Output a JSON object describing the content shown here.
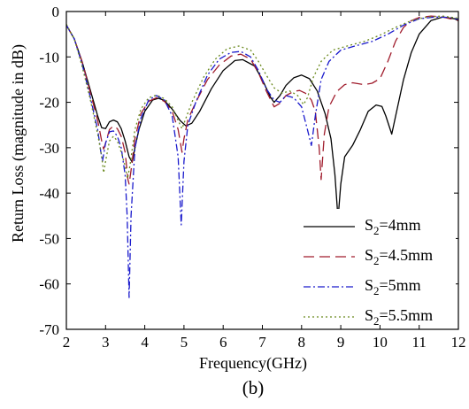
{
  "caption": "(b)",
  "chart_data": {
    "type": "line",
    "title": "",
    "xlabel": "Frequency(GHz)",
    "ylabel": "Return Loss (magnitude in dB)",
    "xlim": [
      2,
      12
    ],
    "ylim": [
      -70,
      0
    ],
    "xticks": [
      "2",
      "3",
      "4",
      "5",
      "6",
      "7",
      "8",
      "9",
      "10",
      "11",
      "12"
    ],
    "yticks": [
      "0",
      "-10",
      "-20",
      "-30",
      "-40",
      "-50",
      "-60",
      "-70"
    ],
    "grid": false,
    "legend_position": "bottom-right",
    "series": [
      {
        "name": "S2=4mm",
        "name_main": "S",
        "name_sub": "2",
        "name_suffix": "=4mm",
        "color": "#000000",
        "dash": "solid",
        "points": [
          [
            2.0,
            -3.0
          ],
          [
            2.2,
            -6.0
          ],
          [
            2.4,
            -11.0
          ],
          [
            2.6,
            -17.0
          ],
          [
            2.8,
            -23.0
          ],
          [
            2.9,
            -25.6
          ],
          [
            3.0,
            -25.8
          ],
          [
            3.1,
            -24.3
          ],
          [
            3.2,
            -23.9
          ],
          [
            3.3,
            -24.3
          ],
          [
            3.4,
            -25.8
          ],
          [
            3.5,
            -28.5
          ],
          [
            3.6,
            -32.0
          ],
          [
            3.68,
            -33.2
          ],
          [
            3.75,
            -30.0
          ],
          [
            3.85,
            -26.0
          ],
          [
            4.0,
            -22.0
          ],
          [
            4.2,
            -19.5
          ],
          [
            4.35,
            -19.1
          ],
          [
            4.5,
            -19.6
          ],
          [
            4.7,
            -21.5
          ],
          [
            4.9,
            -24.0
          ],
          [
            5.05,
            -25.2
          ],
          [
            5.2,
            -24.6
          ],
          [
            5.4,
            -22.0
          ],
          [
            5.7,
            -17.0
          ],
          [
            6.0,
            -13.0
          ],
          [
            6.3,
            -10.8
          ],
          [
            6.5,
            -10.6
          ],
          [
            6.8,
            -12.0
          ],
          [
            7.0,
            -15.0
          ],
          [
            7.2,
            -18.8
          ],
          [
            7.3,
            -20.0
          ],
          [
            7.45,
            -18.5
          ],
          [
            7.6,
            -16.3
          ],
          [
            7.8,
            -14.6
          ],
          [
            8.0,
            -14.0
          ],
          [
            8.2,
            -14.8
          ],
          [
            8.4,
            -17.5
          ],
          [
            8.6,
            -22.5
          ],
          [
            8.75,
            -28.0
          ],
          [
            8.85,
            -36.0
          ],
          [
            8.93,
            -45.6
          ],
          [
            9.0,
            -38.0
          ],
          [
            9.1,
            -32.0
          ],
          [
            9.3,
            -29.5
          ],
          [
            9.5,
            -26.0
          ],
          [
            9.7,
            -22.0
          ],
          [
            9.9,
            -20.6
          ],
          [
            10.05,
            -20.9
          ],
          [
            10.15,
            -23.0
          ],
          [
            10.3,
            -27.0
          ],
          [
            10.4,
            -23.0
          ],
          [
            10.6,
            -15.0
          ],
          [
            10.8,
            -9.0
          ],
          [
            11.0,
            -5.0
          ],
          [
            11.3,
            -2.0
          ],
          [
            11.6,
            -1.2
          ],
          [
            11.9,
            -1.6
          ],
          [
            12.0,
            -2.0
          ]
        ]
      },
      {
        "name": "S2=4.5mm",
        "name_main": "S",
        "name_sub": "2",
        "name_suffix": "=4.5mm",
        "color": "#a01c2c",
        "dash": "long-dash",
        "points": [
          [
            2.0,
            -3.0
          ],
          [
            2.2,
            -6.0
          ],
          [
            2.4,
            -11.0
          ],
          [
            2.6,
            -17.5
          ],
          [
            2.8,
            -24.0
          ],
          [
            2.9,
            -28.5
          ],
          [
            2.95,
            -30.3
          ],
          [
            3.0,
            -29.0
          ],
          [
            3.1,
            -26.0
          ],
          [
            3.2,
            -25.2
          ],
          [
            3.3,
            -25.8
          ],
          [
            3.4,
            -27.5
          ],
          [
            3.5,
            -31.0
          ],
          [
            3.57,
            -37.0
          ],
          [
            3.6,
            -38.0
          ],
          [
            3.65,
            -35.0
          ],
          [
            3.75,
            -28.0
          ],
          [
            3.9,
            -22.5
          ],
          [
            4.1,
            -19.8
          ],
          [
            4.3,
            -19.0
          ],
          [
            4.5,
            -19.8
          ],
          [
            4.7,
            -22.0
          ],
          [
            4.85,
            -26.0
          ],
          [
            4.95,
            -31.0
          ],
          [
            5.0,
            -28.0
          ],
          [
            5.1,
            -23.8
          ],
          [
            5.3,
            -20.0
          ],
          [
            5.6,
            -15.0
          ],
          [
            5.9,
            -11.8
          ],
          [
            6.2,
            -9.8
          ],
          [
            6.45,
            -9.4
          ],
          [
            6.7,
            -10.5
          ],
          [
            6.9,
            -13.5
          ],
          [
            7.1,
            -17.5
          ],
          [
            7.3,
            -21.0
          ],
          [
            7.45,
            -20.2
          ],
          [
            7.6,
            -18.5
          ],
          [
            7.8,
            -17.6
          ],
          [
            7.95,
            -17.4
          ],
          [
            8.1,
            -18.0
          ],
          [
            8.25,
            -19.5
          ],
          [
            8.35,
            -22.0
          ],
          [
            8.45,
            -30.0
          ],
          [
            8.5,
            -37.0
          ],
          [
            8.58,
            -27.0
          ],
          [
            8.7,
            -21.0
          ],
          [
            8.9,
            -17.6
          ],
          [
            9.1,
            -16.1
          ],
          [
            9.3,
            -15.7
          ],
          [
            9.6,
            -16.1
          ],
          [
            9.8,
            -15.8
          ],
          [
            10.0,
            -14.8
          ],
          [
            10.2,
            -11.0
          ],
          [
            10.4,
            -6.5
          ],
          [
            10.6,
            -3.5
          ],
          [
            10.8,
            -2.0
          ],
          [
            11.0,
            -1.3
          ],
          [
            11.3,
            -1.0
          ],
          [
            11.6,
            -1.2
          ],
          [
            12.0,
            -2.0
          ]
        ]
      },
      {
        "name": "S2=5mm",
        "name_main": "S",
        "name_sub": "2",
        "name_suffix": "=5mm",
        "color": "#1a1acc",
        "dash": "dash-dot",
        "points": [
          [
            2.0,
            -3.0
          ],
          [
            2.2,
            -6.0
          ],
          [
            2.4,
            -11.5
          ],
          [
            2.6,
            -18.5
          ],
          [
            2.8,
            -26.0
          ],
          [
            2.88,
            -31.0
          ],
          [
            2.92,
            -33.0
          ],
          [
            3.0,
            -29.0
          ],
          [
            3.1,
            -26.5
          ],
          [
            3.2,
            -26.3
          ],
          [
            3.3,
            -27.5
          ],
          [
            3.4,
            -30.0
          ],
          [
            3.5,
            -36.0
          ],
          [
            3.55,
            -45.0
          ],
          [
            3.6,
            -63.0
          ],
          [
            3.65,
            -45.0
          ],
          [
            3.75,
            -30.0
          ],
          [
            3.9,
            -23.5
          ],
          [
            4.1,
            -19.5
          ],
          [
            4.3,
            -18.5
          ],
          [
            4.5,
            -19.5
          ],
          [
            4.7,
            -23.0
          ],
          [
            4.85,
            -32.0
          ],
          [
            4.93,
            -47.0
          ],
          [
            5.0,
            -33.0
          ],
          [
            5.1,
            -25.0
          ],
          [
            5.3,
            -20.0
          ],
          [
            5.6,
            -14.0
          ],
          [
            5.9,
            -10.5
          ],
          [
            6.2,
            -9.0
          ],
          [
            6.45,
            -8.8
          ],
          [
            6.7,
            -10.0
          ],
          [
            6.9,
            -13.0
          ],
          [
            7.1,
            -17.0
          ],
          [
            7.3,
            -19.5
          ],
          [
            7.45,
            -20.0
          ],
          [
            7.6,
            -18.5
          ],
          [
            7.8,
            -19.0
          ],
          [
            8.0,
            -21.0
          ],
          [
            8.15,
            -26.0
          ],
          [
            8.25,
            -29.5
          ],
          [
            8.35,
            -23.0
          ],
          [
            8.5,
            -15.0
          ],
          [
            8.7,
            -11.0
          ],
          [
            9.0,
            -8.5
          ],
          [
            9.4,
            -7.5
          ],
          [
            9.8,
            -6.6
          ],
          [
            10.2,
            -5.0
          ],
          [
            10.6,
            -3.0
          ],
          [
            11.0,
            -1.6
          ],
          [
            11.4,
            -1.2
          ],
          [
            11.8,
            -1.3
          ],
          [
            12.0,
            -1.7
          ]
        ]
      },
      {
        "name": "S2=5.5mm",
        "name_main": "S",
        "name_sub": "2",
        "name_suffix": "=5.5mm",
        "color": "#6b8a1e",
        "dash": "dotted",
        "points": [
          [
            2.0,
            -2.8
          ],
          [
            2.2,
            -6.0
          ],
          [
            2.4,
            -12.0
          ],
          [
            2.6,
            -19.0
          ],
          [
            2.8,
            -27.0
          ],
          [
            2.9,
            -32.0
          ],
          [
            2.95,
            -35.5
          ],
          [
            3.0,
            -33.0
          ],
          [
            3.1,
            -28.5
          ],
          [
            3.2,
            -27.5
          ],
          [
            3.3,
            -28.5
          ],
          [
            3.4,
            -31.0
          ],
          [
            3.5,
            -34.0
          ],
          [
            3.56,
            -36.8
          ],
          [
            3.62,
            -34.0
          ],
          [
            3.75,
            -26.0
          ],
          [
            3.9,
            -21.5
          ],
          [
            4.1,
            -19.0
          ],
          [
            4.3,
            -18.4
          ],
          [
            4.5,
            -19.2
          ],
          [
            4.7,
            -21.0
          ],
          [
            4.85,
            -24.0
          ],
          [
            4.95,
            -25.8
          ],
          [
            5.05,
            -23.5
          ],
          [
            5.2,
            -20.0
          ],
          [
            5.5,
            -14.5
          ],
          [
            5.8,
            -10.5
          ],
          [
            6.1,
            -8.2
          ],
          [
            6.4,
            -7.6
          ],
          [
            6.7,
            -8.5
          ],
          [
            6.9,
            -11.0
          ],
          [
            7.1,
            -14.0
          ],
          [
            7.3,
            -16.8
          ],
          [
            7.5,
            -18.0
          ],
          [
            7.7,
            -17.5
          ],
          [
            7.9,
            -18.5
          ],
          [
            8.05,
            -20.5
          ],
          [
            8.15,
            -19.0
          ],
          [
            8.3,
            -14.5
          ],
          [
            8.5,
            -11.0
          ],
          [
            8.8,
            -8.5
          ],
          [
            9.2,
            -7.5
          ],
          [
            9.6,
            -6.6
          ],
          [
            10.0,
            -5.2
          ],
          [
            10.4,
            -3.5
          ],
          [
            10.8,
            -2.0
          ],
          [
            11.2,
            -1.2
          ],
          [
            11.6,
            -1.0
          ],
          [
            12.0,
            -1.5
          ]
        ]
      }
    ]
  }
}
